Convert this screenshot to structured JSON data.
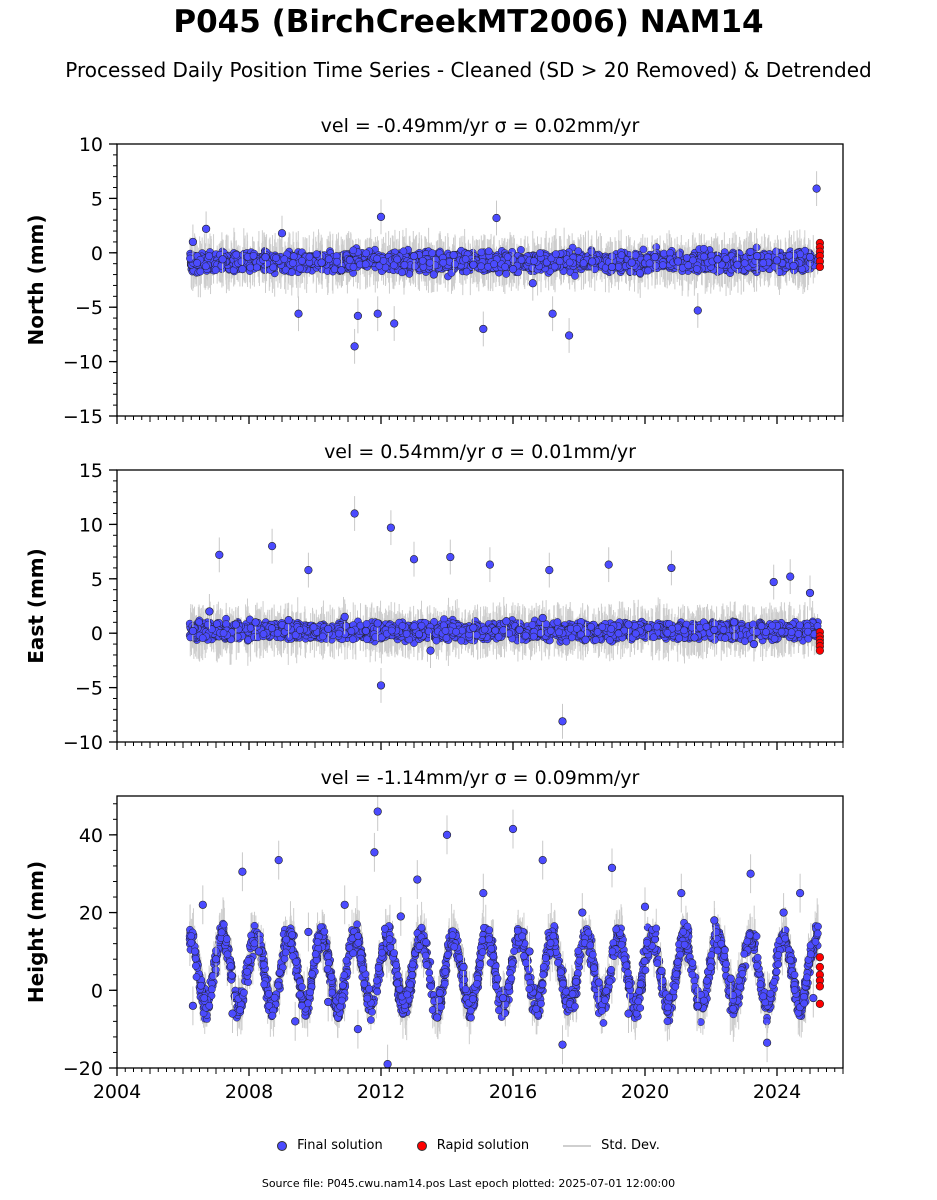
{
  "page": {
    "title": "P045 (BirchCreekMT2006) NAM14",
    "subtitle": "Processed Daily Position Time Series - Cleaned (SD > 20 Removed) & Detrended",
    "footer": "Source file: P045.cwu.nam14.pos  Last epoch plotted: 2025-07-01 12:00:00"
  },
  "legend": {
    "final_label": "Final solution",
    "rapid_label": "Rapid solution",
    "std_label": "Std. Dev."
  },
  "colors": {
    "final": "#4b4bff",
    "rapid": "#ff0000",
    "std": "#c8c8c8"
  },
  "chart_data": [
    {
      "type": "scatter",
      "title": "vel = -0.49mm/yr   σ = 0.02mm/yr",
      "ylabel": "North (mm)",
      "xlim": [
        2004,
        2026
      ],
      "ylim": [
        -15,
        10
      ],
      "yticks": [
        10,
        5,
        0,
        -5,
        -10,
        -15
      ],
      "xticks": [
        2004,
        2008,
        2012,
        2016,
        2020,
        2024
      ],
      "series": [
        {
          "x": [
            2006.3,
            2006.7,
            2007.2,
            2007.8,
            2008.5,
            2009.0,
            2009.5,
            2010.2,
            2010.8,
            2011.2,
            2011.3,
            2011.9,
            2012.0,
            2012.4,
            2013.0,
            2013.6,
            2014.2,
            2014.8,
            2015.1,
            2015.5,
            2016.0,
            2016.6,
            2017.2,
            2017.7,
            2018.4,
            2019.0,
            2019.6,
            2020.3,
            2021.0,
            2021.6,
            2022.2,
            2022.8,
            2023.4,
            2024.0,
            2024.5,
            2025.0,
            2025.2
          ],
          "y": [
            1.0,
            2.2,
            -0.6,
            -1.5,
            -0.4,
            1.8,
            -5.6,
            -0.9,
            -1.6,
            -8.6,
            -5.8,
            -5.6,
            3.3,
            -6.5,
            -0.3,
            -2.0,
            -0.2,
            -1.1,
            -7.0,
            3.2,
            -1.5,
            -2.8,
            -5.6,
            -7.6,
            -0.8,
            -1.3,
            -0.9,
            -0.4,
            -0.8,
            -5.3,
            -0.6,
            -1.1,
            -0.3,
            -0.7,
            -1.2,
            -0.4,
            5.9
          ]
        },
        {
          "x": [
            2025.3,
            2025.3,
            2025.3,
            2025.3,
            2025.3,
            2025.3
          ],
          "y": [
            0.9,
            0.5,
            0.1,
            -0.3,
            -0.8,
            -1.3
          ]
        }
      ]
    },
    {
      "type": "scatter",
      "title": "vel = 0.54mm/yr   σ = 0.01mm/yr",
      "ylabel": "East (mm)",
      "xlim": [
        2004,
        2026
      ],
      "ylim": [
        -10,
        15
      ],
      "yticks": [
        15,
        10,
        5,
        0,
        -5,
        -10
      ],
      "xticks": [
        2004,
        2008,
        2012,
        2016,
        2020,
        2024
      ],
      "series": [
        {
          "x": [
            2006.3,
            2006.8,
            2007.1,
            2007.6,
            2008.2,
            2008.7,
            2009.2,
            2009.8,
            2010.4,
            2010.9,
            2011.2,
            2011.9,
            2012.0,
            2012.3,
            2013.0,
            2013.5,
            2014.1,
            2014.8,
            2015.3,
            2015.8,
            2016.2,
            2016.9,
            2017.1,
            2017.5,
            2018.2,
            2018.9,
            2019.5,
            2020.1,
            2020.8,
            2021.5,
            2022.1,
            2022.7,
            2023.3,
            2023.9,
            2024.4,
            2025.0
          ],
          "y": [
            0.2,
            2.0,
            7.2,
            0.8,
            1.0,
            8.0,
            1.2,
            5.8,
            0.4,
            1.5,
            11.0,
            0.9,
            -4.8,
            9.7,
            6.8,
            -1.6,
            7.0,
            0.5,
            6.3,
            1.1,
            0.3,
            1.4,
            5.8,
            -8.1,
            -0.6,
            6.3,
            0.8,
            0.5,
            6.0,
            -0.4,
            0.3,
            1.0,
            -1.0,
            4.7,
            5.2,
            3.7
          ]
        },
        {
          "x": [
            2025.3,
            2025.3,
            2025.3,
            2025.3,
            2025.3,
            2025.3
          ],
          "y": [
            0.1,
            -0.3,
            -0.6,
            -0.9,
            -1.2,
            -1.6
          ]
        }
      ]
    },
    {
      "type": "scatter",
      "title": "vel = -1.14mm/yr   σ = 0.09mm/yr",
      "ylabel": "Height (mm)",
      "xlim": [
        2004,
        2026
      ],
      "ylim": [
        -20,
        50
      ],
      "yticks": [
        40,
        20,
        0,
        -20
      ],
      "xticks": [
        2004,
        2008,
        2012,
        2016,
        2020,
        2024
      ],
      "series": [
        {
          "x": [
            2006.3,
            2006.6,
            2007.0,
            2007.5,
            2007.8,
            2008.3,
            2008.9,
            2009.4,
            2009.8,
            2010.4,
            2010.9,
            2011.3,
            2011.8,
            2011.9,
            2012.2,
            2012.6,
            2013.1,
            2013.7,
            2014.0,
            2014.5,
            2015.1,
            2015.7,
            2016.0,
            2016.5,
            2016.9,
            2017.5,
            2018.1,
            2018.6,
            2019.0,
            2019.5,
            2020.0,
            2020.5,
            2021.1,
            2021.6,
            2022.1,
            2022.6,
            2023.2,
            2023.7,
            2024.2,
            2024.7,
            2025.1
          ],
          "y": [
            -4.0,
            22.0,
            8.0,
            -6.0,
            30.5,
            10.0,
            33.5,
            -8.0,
            15.0,
            -3.0,
            22.0,
            -10.0,
            35.5,
            46.0,
            -19.0,
            19.0,
            28.5,
            -7.0,
            40.0,
            6.0,
            25.0,
            -2.0,
            41.5,
            10.0,
            33.5,
            -14.0,
            20.0,
            2.0,
            31.5,
            -6.0,
            21.5,
            5.0,
            25.0,
            -4.0,
            18.0,
            3.0,
            30.0,
            -13.5,
            20.0,
            25.0,
            -2.0
          ]
        },
        {
          "x": [
            2025.3,
            2025.3,
            2025.3,
            2025.3,
            2025.3,
            2025.3
          ],
          "y": [
            8.5,
            6.0,
            4.0,
            2.5,
            1.0,
            -3.5
          ]
        }
      ]
    }
  ]
}
